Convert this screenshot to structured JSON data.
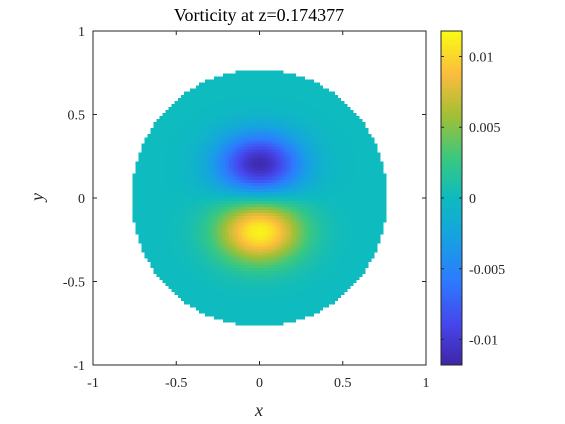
{
  "chart_data": {
    "type": "heatmap",
    "title": "Vorticity at z=0.174377",
    "xlabel": "x",
    "ylabel": "y",
    "xlim": [
      -1,
      1
    ],
    "ylim": [
      -1,
      1
    ],
    "x_ticks": [
      -1,
      -0.5,
      0,
      0.5,
      1
    ],
    "y_ticks": [
      -1,
      -0.5,
      0,
      0.5,
      1
    ],
    "x_tick_labels": [
      "-1",
      "-0.5",
      "0",
      "0.5",
      "1"
    ],
    "y_tick_labels": [
      "-1",
      "-0.5",
      "0",
      "0.5",
      "1"
    ],
    "domain_radius": 0.77,
    "field": {
      "negative_extremum": {
        "x": 0.0,
        "y": 0.2,
        "value": -0.0115
      },
      "positive_extremum": {
        "x": 0.0,
        "y": -0.2,
        "value": 0.0115
      },
      "background_value": 0.0
    },
    "colorbar": {
      "colormap": "parula",
      "limits": [
        -0.0118,
        0.0118
      ],
      "ticks": [
        -0.01,
        -0.005,
        0,
        0.005,
        0.01
      ],
      "tick_labels": [
        "-0.01",
        "-0.005",
        "0",
        "0.005",
        "0.01"
      ]
    },
    "grid": false,
    "box": true
  }
}
